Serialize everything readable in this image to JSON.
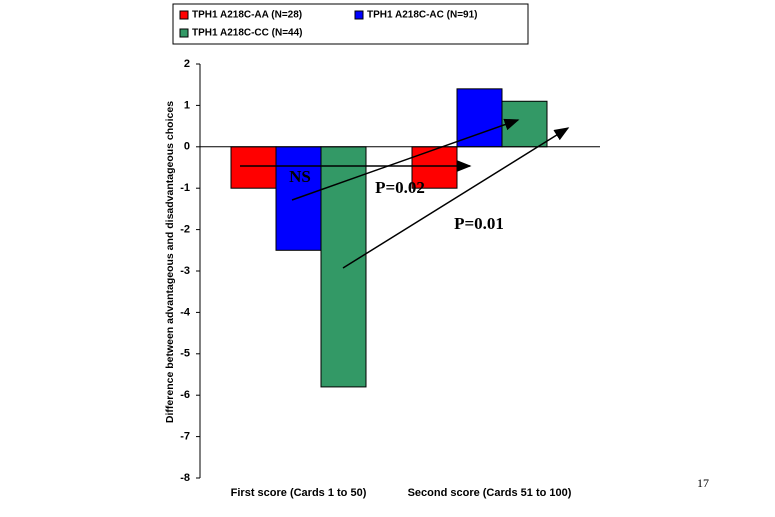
{
  "chart_data": {
    "type": "bar",
    "y_label": "Difference between advantageous and disadvantageous choices",
    "categories": [
      "First score (Cards 1 to 50)",
      "Second score (Cards 51 to 100)"
    ],
    "series": [
      {
        "name": "TPH1 A218C-AA (N=28)",
        "color": "#ff0000",
        "values": [
          -1,
          -1
        ]
      },
      {
        "name": "TPH1 A218C-AC (N=91)",
        "color": "#0000ff",
        "values": [
          -2.5,
          1.4
        ]
      },
      {
        "name": "TPH1 A218C-CC (N=44)",
        "color": "#339966",
        "values": [
          -5.8,
          1.1
        ]
      }
    ],
    "ylim": [
      -8,
      2
    ],
    "yticks": [
      2,
      1,
      0,
      -1,
      -2,
      -3,
      -4,
      -5,
      -6,
      -7,
      -8
    ],
    "grid": false,
    "legend": "top",
    "annotations": [
      "NS",
      "P=0.02",
      "P=0.01"
    ]
  },
  "page_number": "17"
}
